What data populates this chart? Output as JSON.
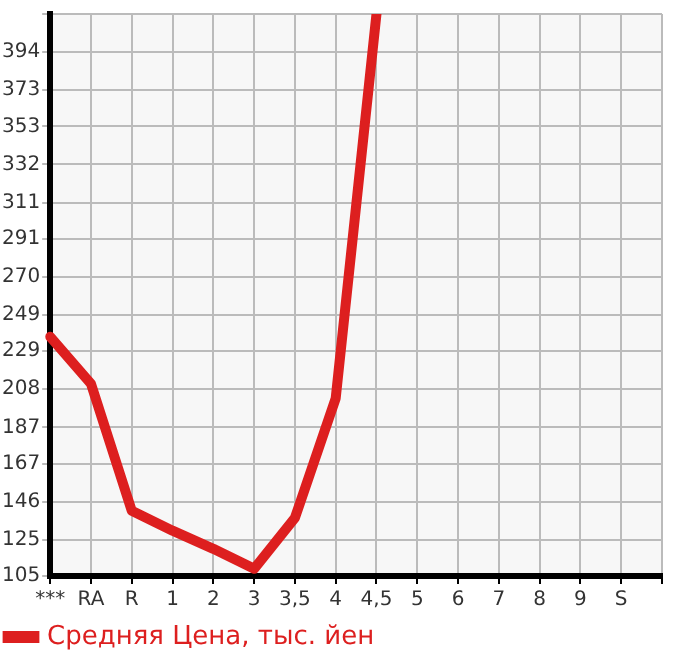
{
  "chart_data": {
    "type": "line",
    "categories": [
      "***",
      "RA",
      "R",
      "1",
      "2",
      "3",
      "3,5",
      "4",
      "4,5",
      "5",
      "6",
      "7",
      "8",
      "9",
      "S",
      null
    ],
    "series": [
      {
        "name": "Средняя Цена, тыс. йен",
        "color": "#dd1f1f",
        "values": [
          237,
          211,
          141,
          130,
          120,
          109,
          137,
          203,
          415,
          null,
          null,
          null,
          null,
          null,
          null,
          null
        ]
      }
    ],
    "ylim": [
      105,
      415
    ],
    "yticks": [
      105,
      125,
      146,
      167,
      187,
      208,
      229,
      249,
      270,
      291,
      311,
      332,
      353,
      373,
      394,
      {
        "value": 415,
        "label": null
      }
    ],
    "grid": true,
    "legend": "bottom left",
    "marker": "none",
    "line_style": "solid"
  }
}
